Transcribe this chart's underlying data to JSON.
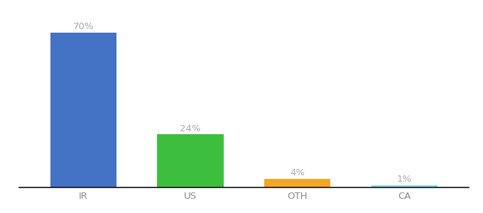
{
  "categories": [
    "IR",
    "US",
    "OTH",
    "CA"
  ],
  "values": [
    70,
    24,
    4,
    1
  ],
  "bar_colors": [
    "#4472C4",
    "#3DBF3D",
    "#F5A623",
    "#7DD8F0"
  ],
  "labels": [
    "70%",
    "24%",
    "4%",
    "1%"
  ],
  "ylim": [
    0,
    78
  ],
  "background_color": "#ffffff",
  "label_fontsize": 9.5,
  "tick_fontsize": 9.5,
  "label_color": "#aaaaaa",
  "tick_color": "#888888",
  "bar_width": 0.62
}
